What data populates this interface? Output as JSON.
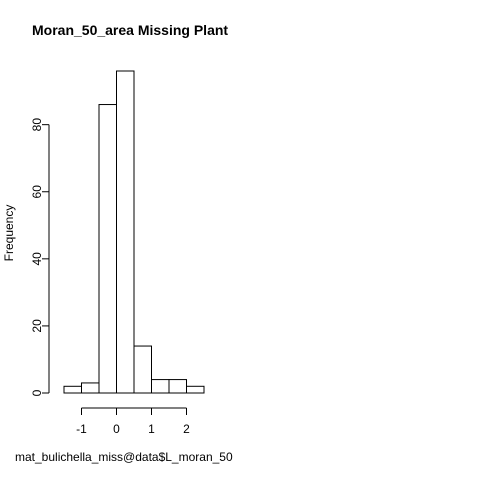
{
  "chart_data": {
    "type": "bar",
    "title": "Moran_50_area Missing Plant",
    "xlabel": "mat_bulichella_miss@data$L_moran_50",
    "ylabel": "Frequency",
    "bins": [
      {
        "start": -1.5,
        "end": -1.0,
        "value": 2
      },
      {
        "start": -1.0,
        "end": -0.5,
        "value": 3
      },
      {
        "start": -0.5,
        "end": 0.0,
        "value": 86
      },
      {
        "start": 0.0,
        "end": 0.5,
        "value": 96
      },
      {
        "start": 0.5,
        "end": 1.0,
        "value": 14
      },
      {
        "start": 1.0,
        "end": 1.5,
        "value": 4
      },
      {
        "start": 1.5,
        "end": 2.0,
        "value": 4
      },
      {
        "start": 2.0,
        "end": 2.5,
        "value": 2
      }
    ],
    "x_ticks": [
      -1,
      0,
      1,
      2
    ],
    "x_tick_labels": [
      "-1",
      "0",
      "1",
      "2"
    ],
    "y_ticks": [
      0,
      20,
      40,
      60,
      80
    ],
    "y_tick_labels": [
      "0",
      "20",
      "40",
      "60",
      "80"
    ],
    "xlim": [
      -1.5,
      2.5
    ],
    "ylim": [
      0,
      96
    ],
    "grid": false,
    "legend": "none"
  }
}
